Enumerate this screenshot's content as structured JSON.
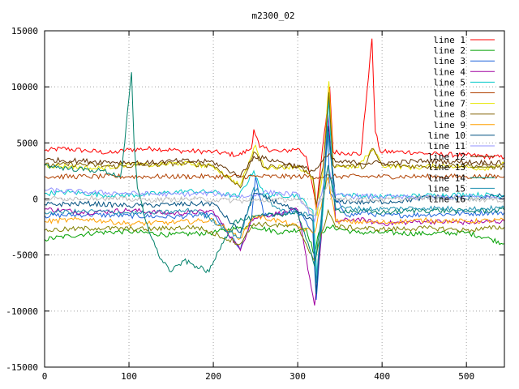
{
  "chart_data": {
    "type": "line",
    "title": "m2300_02",
    "xlabel": "",
    "ylabel": "",
    "xlim": [
      0,
      545
    ],
    "ylim": [
      -15000,
      15000
    ],
    "x_ticks": [
      "0",
      "100",
      "200",
      "300",
      "400",
      "500"
    ],
    "y_ticks": [
      "15000",
      "10000",
      "5000",
      "0",
      "-5000",
      "-10000",
      "-15000"
    ],
    "grid": true,
    "legend_position": "top-right",
    "series": [
      {
        "name": "line 1",
        "color": "#ff0000",
        "points": [
          [
            0,
            4300
          ],
          [
            20,
            4500
          ],
          [
            50,
            4300
          ],
          [
            80,
            4100
          ],
          [
            100,
            4400
          ],
          [
            130,
            4500
          ],
          [
            160,
            4300
          ],
          [
            200,
            4200
          ],
          [
            230,
            3900
          ],
          [
            245,
            4500
          ],
          [
            248,
            6200
          ],
          [
            255,
            4600
          ],
          [
            280,
            4200
          ],
          [
            300,
            4500
          ],
          [
            310,
            3800
          ],
          [
            318,
            1000
          ],
          [
            322,
            -1000
          ],
          [
            328,
            3500
          ],
          [
            335,
            8000
          ],
          [
            338,
            10000
          ],
          [
            342,
            4200
          ],
          [
            360,
            4100
          ],
          [
            375,
            4000
          ],
          [
            382,
            9500
          ],
          [
            388,
            14300
          ],
          [
            392,
            6000
          ],
          [
            398,
            4200
          ],
          [
            430,
            4200
          ],
          [
            460,
            4000
          ],
          [
            500,
            3900
          ],
          [
            545,
            3700
          ]
        ]
      },
      {
        "name": "line 2",
        "color": "#00a000",
        "points": [
          [
            0,
            -3600
          ],
          [
            30,
            -3300
          ],
          [
            60,
            -3000
          ],
          [
            100,
            -2900
          ],
          [
            150,
            -3200
          ],
          [
            200,
            -3000
          ],
          [
            230,
            -2600
          ],
          [
            245,
            -2400
          ],
          [
            280,
            -3000
          ],
          [
            310,
            -2600
          ],
          [
            320,
            -5000
          ],
          [
            325,
            -3000
          ],
          [
            340,
            -2500
          ],
          [
            370,
            -3000
          ],
          [
            400,
            -3000
          ],
          [
            450,
            -3100
          ],
          [
            500,
            -3000
          ],
          [
            530,
            -3600
          ],
          [
            545,
            -4000
          ]
        ]
      },
      {
        "name": "line 3",
        "color": "#1e64dc",
        "points": [
          [
            0,
            -1500
          ],
          [
            50,
            -1400
          ],
          [
            100,
            -1500
          ],
          [
            150,
            -1600
          ],
          [
            200,
            -1400
          ],
          [
            232,
            -4500
          ],
          [
            245,
            -2000
          ],
          [
            250,
            2000
          ],
          [
            260,
            -1500
          ],
          [
            300,
            -1000
          ],
          [
            318,
            -3000
          ],
          [
            322,
            -9000
          ],
          [
            328,
            -3000
          ],
          [
            335,
            7000
          ],
          [
            338,
            500
          ],
          [
            360,
            -1500
          ],
          [
            380,
            -1200
          ],
          [
            400,
            -1500
          ],
          [
            450,
            -1400
          ],
          [
            500,
            -1300
          ],
          [
            545,
            -1200
          ]
        ]
      },
      {
        "name": "line 4",
        "color": "#a000a0",
        "points": [
          [
            0,
            -900
          ],
          [
            50,
            -1200
          ],
          [
            100,
            -1000
          ],
          [
            150,
            -1300
          ],
          [
            200,
            -1100
          ],
          [
            232,
            -4600
          ],
          [
            245,
            -1800
          ],
          [
            260,
            -1500
          ],
          [
            300,
            -1000
          ],
          [
            320,
            -9500
          ],
          [
            328,
            -3500
          ],
          [
            336,
            7500
          ],
          [
            345,
            -2000
          ],
          [
            370,
            -1800
          ],
          [
            400,
            -2200
          ],
          [
            450,
            -2000
          ],
          [
            500,
            -2100
          ],
          [
            545,
            -2000
          ]
        ]
      },
      {
        "name": "line 5",
        "color": "#00c8c8",
        "points": [
          [
            0,
            500
          ],
          [
            30,
            600
          ],
          [
            80,
            300
          ],
          [
            120,
            400
          ],
          [
            170,
            700
          ],
          [
            200,
            600
          ],
          [
            230,
            200
          ],
          [
            248,
            2500
          ],
          [
            260,
            400
          ],
          [
            300,
            300
          ],
          [
            318,
            -1000
          ],
          [
            323,
            -7000
          ],
          [
            330,
            -1000
          ],
          [
            337,
            9000
          ],
          [
            342,
            500
          ],
          [
            370,
            300
          ],
          [
            400,
            200
          ],
          [
            450,
            300
          ],
          [
            500,
            400
          ],
          [
            545,
            300
          ]
        ]
      },
      {
        "name": "line 6",
        "color": "#b04000",
        "points": [
          [
            0,
            2000
          ],
          [
            50,
            2000
          ],
          [
            100,
            2000
          ],
          [
            150,
            2000
          ],
          [
            200,
            2000
          ],
          [
            250,
            2000
          ],
          [
            300,
            2000
          ],
          [
            350,
            2000
          ],
          [
            400,
            2000
          ],
          [
            450,
            2000
          ],
          [
            500,
            2000
          ],
          [
            545,
            2000
          ]
        ]
      },
      {
        "name": "line 7",
        "color": "#e6e600",
        "points": [
          [
            0,
            3000
          ],
          [
            30,
            2900
          ],
          [
            60,
            2700
          ],
          [
            100,
            3100
          ],
          [
            130,
            3000
          ],
          [
            160,
            3200
          ],
          [
            200,
            2900
          ],
          [
            232,
            1200
          ],
          [
            250,
            4800
          ],
          [
            260,
            2800
          ],
          [
            300,
            2900
          ],
          [
            318,
            1800
          ],
          [
            323,
            -1500
          ],
          [
            330,
            2500
          ],
          [
            337,
            10500
          ],
          [
            342,
            3000
          ],
          [
            370,
            2800
          ],
          [
            390,
            4500
          ],
          [
            400,
            3000
          ],
          [
            440,
            2800
          ],
          [
            480,
            3000
          ],
          [
            520,
            2700
          ],
          [
            545,
            3200
          ]
        ]
      },
      {
        "name": "line 8",
        "color": "#806000",
        "points": [
          [
            0,
            3000
          ],
          [
            40,
            3100
          ],
          [
            80,
            2900
          ],
          [
            120,
            3000
          ],
          [
            160,
            3200
          ],
          [
            200,
            3000
          ],
          [
            232,
            1000
          ],
          [
            248,
            4200
          ],
          [
            260,
            2800
          ],
          [
            300,
            3000
          ],
          [
            318,
            2000
          ],
          [
            322,
            -500
          ],
          [
            330,
            2800
          ],
          [
            337,
            9500
          ],
          [
            342,
            3000
          ],
          [
            380,
            2900
          ],
          [
            388,
            4500
          ],
          [
            400,
            3000
          ],
          [
            450,
            2900
          ],
          [
            500,
            3000
          ],
          [
            545,
            2800
          ]
        ]
      },
      {
        "name": "line 9",
        "color": "#ffa000",
        "points": [
          [
            0,
            -2000
          ],
          [
            50,
            -1800
          ],
          [
            100,
            -2200
          ],
          [
            150,
            -2100
          ],
          [
            200,
            -1900
          ],
          [
            232,
            -3500
          ],
          [
            248,
            -1500
          ],
          [
            280,
            -2000
          ],
          [
            320,
            -3000
          ],
          [
            336,
            2000
          ],
          [
            345,
            -2000
          ],
          [
            400,
            -2100
          ],
          [
            450,
            -1900
          ],
          [
            500,
            -2000
          ],
          [
            545,
            -1900
          ]
        ]
      },
      {
        "name": "line 10",
        "color": "#005080",
        "points": [
          [
            0,
            -500
          ],
          [
            50,
            -400
          ],
          [
            100,
            -600
          ],
          [
            150,
            -500
          ],
          [
            200,
            -400
          ],
          [
            232,
            -3000
          ],
          [
            248,
            500
          ],
          [
            280,
            -400
          ],
          [
            318,
            -2000
          ],
          [
            322,
            -8500
          ],
          [
            328,
            -2000
          ],
          [
            336,
            6500
          ],
          [
            345,
            -200
          ],
          [
            380,
            -300
          ],
          [
            420,
            -200
          ],
          [
            460,
            200
          ],
          [
            500,
            0
          ],
          [
            545,
            300
          ]
        ]
      },
      {
        "name": "line 11",
        "color": "#9090ff",
        "points": [
          [
            0,
            800
          ],
          [
            50,
            600
          ],
          [
            100,
            500
          ],
          [
            150,
            400
          ],
          [
            200,
            500
          ],
          [
            240,
            200
          ],
          [
            260,
            600
          ],
          [
            300,
            400
          ],
          [
            320,
            -2000
          ],
          [
            336,
            3000
          ],
          [
            345,
            300
          ],
          [
            400,
            200
          ],
          [
            450,
            100
          ],
          [
            500,
            200
          ],
          [
            545,
            100
          ]
        ]
      },
      {
        "name": "line 12",
        "color": "#603000",
        "points": [
          [
            0,
            3500
          ],
          [
            40,
            3400
          ],
          [
            80,
            3300
          ],
          [
            120,
            3200
          ],
          [
            160,
            3400
          ],
          [
            200,
            3300
          ],
          [
            232,
            2000
          ],
          [
            248,
            3800
          ],
          [
            280,
            3300
          ],
          [
            320,
            2500
          ],
          [
            337,
            4000
          ],
          [
            345,
            3300
          ],
          [
            400,
            3200
          ],
          [
            450,
            3400
          ],
          [
            500,
            3300
          ],
          [
            545,
            3200
          ]
        ]
      },
      {
        "name": "line 13",
        "color": "#808000",
        "points": [
          [
            0,
            -2800
          ],
          [
            60,
            -2600
          ],
          [
            120,
            -2700
          ],
          [
            180,
            -2500
          ],
          [
            232,
            -4000
          ],
          [
            248,
            -2200
          ],
          [
            300,
            -2500
          ],
          [
            320,
            -5500
          ],
          [
            336,
            -1000
          ],
          [
            345,
            -2500
          ],
          [
            400,
            -2700
          ],
          [
            460,
            -2600
          ],
          [
            500,
            -2800
          ],
          [
            545,
            -2500
          ]
        ]
      },
      {
        "name": "line 14",
        "color": "#00806a",
        "points": [
          [
            0,
            3000
          ],
          [
            30,
            2700
          ],
          [
            70,
            2500
          ],
          [
            90,
            2000
          ],
          [
            95,
            5000
          ],
          [
            100,
            9000
          ],
          [
            103,
            11300
          ],
          [
            106,
            5000
          ],
          [
            110,
            1000
          ],
          [
            120,
            -2000
          ],
          [
            135,
            -5000
          ],
          [
            150,
            -6500
          ],
          [
            165,
            -5500
          ],
          [
            180,
            -6000
          ],
          [
            195,
            -6500
          ],
          [
            210,
            -4000
          ],
          [
            225,
            -2000
          ],
          [
            240,
            -1800
          ],
          [
            260,
            -1500
          ],
          [
            300,
            -1200
          ],
          [
            320,
            -6000
          ],
          [
            336,
            3000
          ],
          [
            345,
            -1000
          ],
          [
            400,
            -1200
          ],
          [
            450,
            -1000
          ],
          [
            500,
            -1100
          ],
          [
            545,
            -1000
          ]
        ]
      },
      {
        "name": "line 15",
        "color": "#2090b0",
        "points": [
          [
            0,
            -1200
          ],
          [
            60,
            -1100
          ],
          [
            120,
            -1300
          ],
          [
            180,
            -1000
          ],
          [
            232,
            -3500
          ],
          [
            248,
            1000
          ],
          [
            280,
            -1100
          ],
          [
            318,
            -1500
          ],
          [
            322,
            -7500
          ],
          [
            328,
            -1500
          ],
          [
            336,
            6000
          ],
          [
            345,
            -800
          ],
          [
            400,
            -900
          ],
          [
            450,
            -800
          ],
          [
            500,
            -900
          ],
          [
            545,
            -800
          ]
        ]
      },
      {
        "name": "line 16",
        "color": "#c0c0c0",
        "points": [
          [
            0,
            0
          ],
          [
            60,
            100
          ],
          [
            120,
            -100
          ],
          [
            180,
            0
          ],
          [
            240,
            -200
          ],
          [
            300,
            0
          ],
          [
            320,
            -1500
          ],
          [
            336,
            1500
          ],
          [
            345,
            0
          ],
          [
            400,
            -100
          ],
          [
            450,
            100
          ],
          [
            500,
            0
          ],
          [
            545,
            -100
          ]
        ]
      }
    ]
  }
}
